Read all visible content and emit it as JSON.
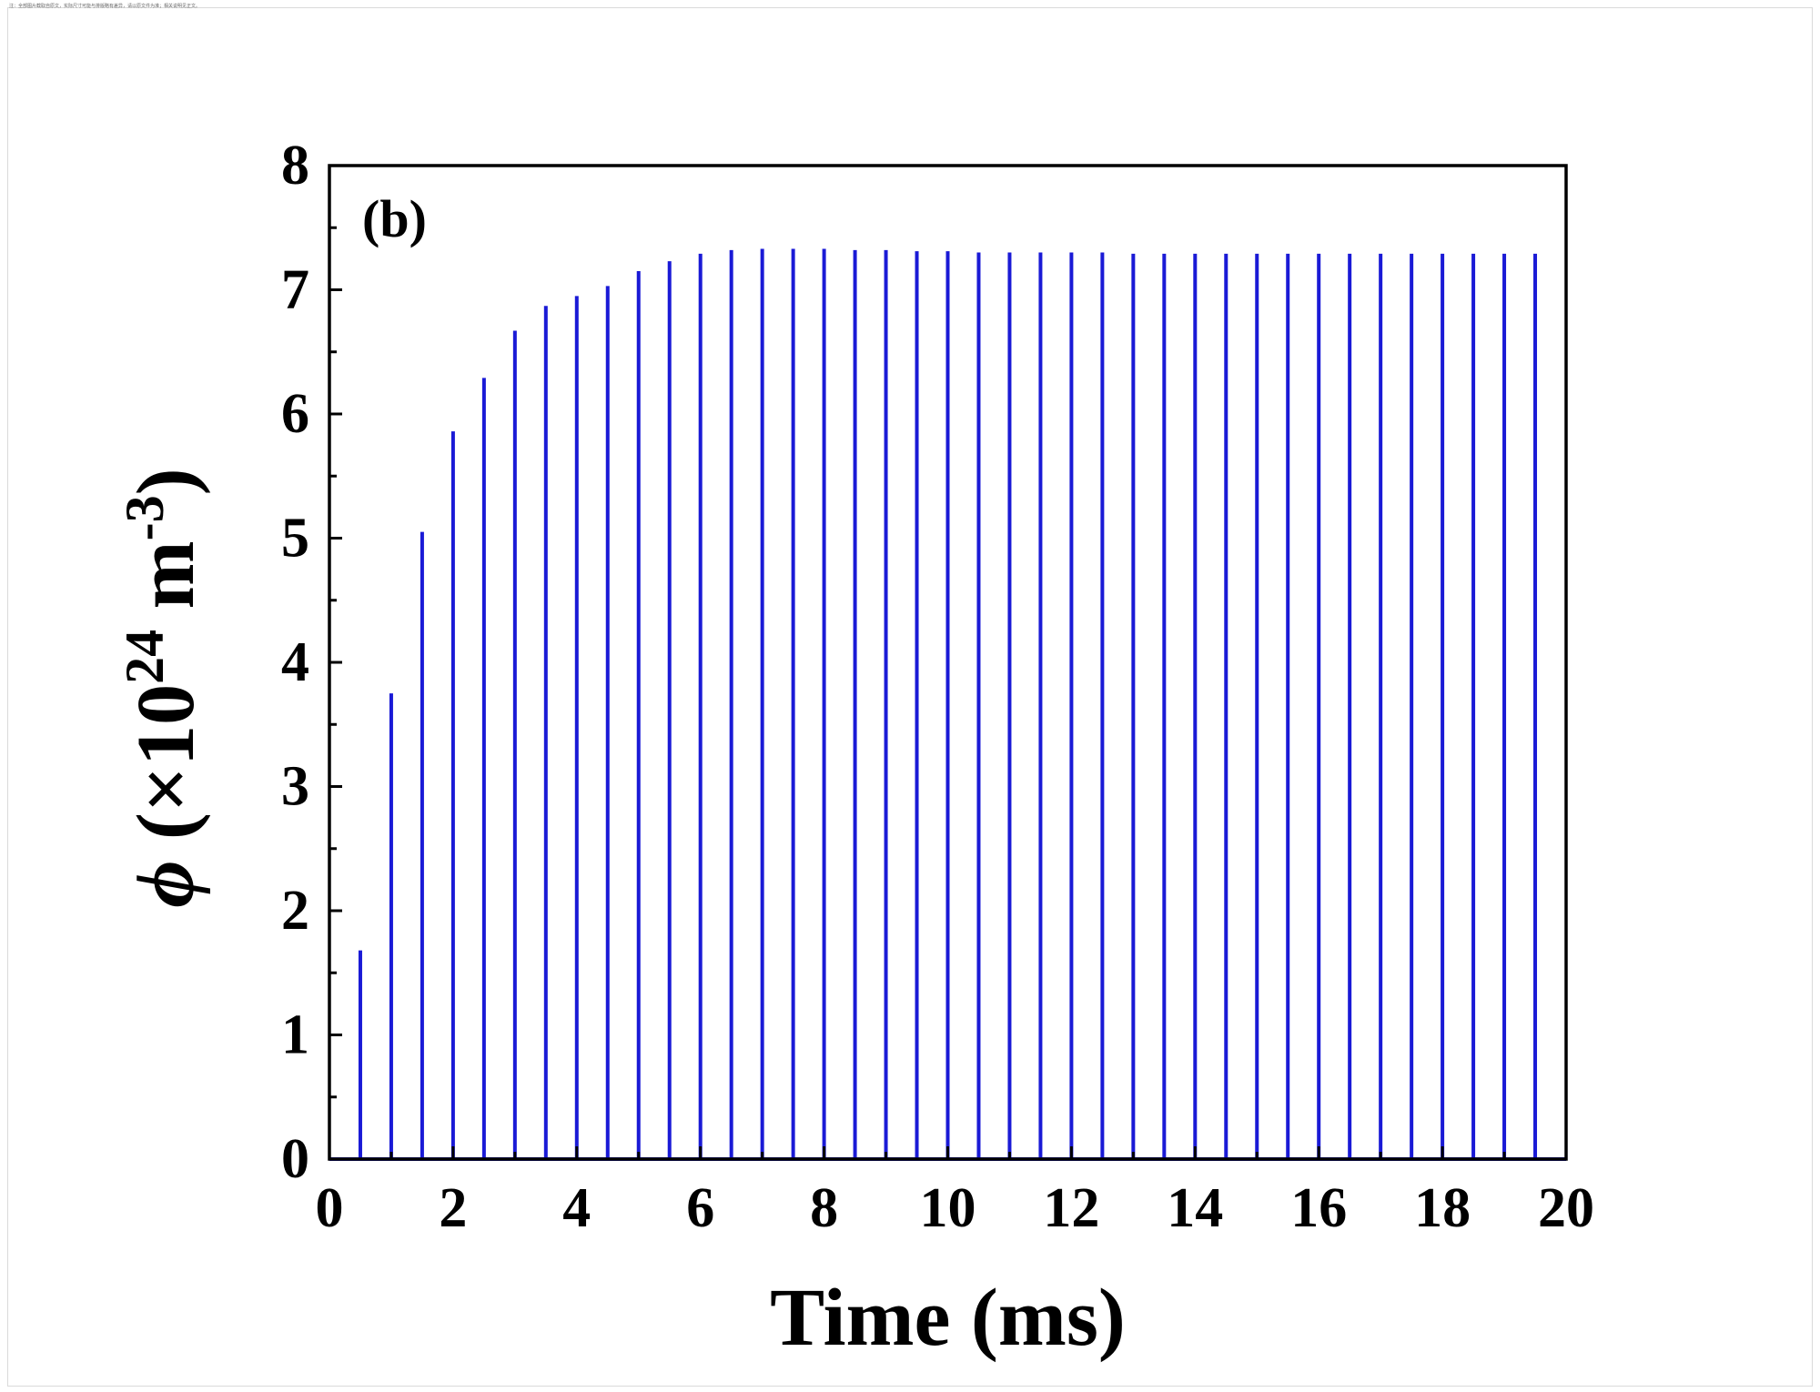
{
  "header_note": "注：全部图片截取自原文，实际尺寸可能与排版略有差异，请以原文件为准；相关说明见正文。",
  "chart_data": {
    "type": "bar",
    "panel_label": "(b)",
    "xlabel": "Time (ms)",
    "ylabel": {
      "symbol": "ϕ",
      "open": " (×10",
      "exp1": "24",
      "unit": " m",
      "exp2": "-3",
      "close": ")"
    },
    "xlim": [
      0,
      20
    ],
    "ylim": [
      0,
      8
    ],
    "x_ticks": [
      "0",
      "2",
      "4",
      "6",
      "8",
      "10",
      "12",
      "14",
      "16",
      "18",
      "20"
    ],
    "y_ticks": [
      "0",
      "1",
      "2",
      "3",
      "4",
      "5",
      "6",
      "7",
      "8"
    ],
    "baseline": 0,
    "grid": false,
    "colors": {
      "series": "#1a1ad6",
      "axes": "#000000"
    },
    "series": [
      {
        "x": [
          0.5,
          1.0,
          1.5,
          2.0,
          2.5,
          3.0,
          3.5,
          4.0,
          4.5,
          5.0,
          5.5,
          6.0,
          6.5,
          7.0,
          7.5,
          8.0,
          8.5,
          9.0,
          9.5,
          10.0,
          10.5,
          11.0,
          11.5,
          12.0,
          12.5,
          13.0,
          13.5,
          14.0,
          14.5,
          15.0,
          15.5,
          16.0,
          16.5,
          17.0,
          17.5,
          18.0,
          18.5,
          19.0,
          19.5
        ],
        "values": [
          1.68,
          3.75,
          5.05,
          5.86,
          6.29,
          6.67,
          6.87,
          6.95,
          7.03,
          7.15,
          7.23,
          7.29,
          7.32,
          7.33,
          7.33,
          7.33,
          7.32,
          7.32,
          7.31,
          7.31,
          7.3,
          7.3,
          7.3,
          7.3,
          7.3,
          7.29,
          7.29,
          7.29,
          7.29,
          7.29,
          7.29,
          7.29,
          7.29,
          7.29,
          7.29,
          7.29,
          7.29,
          7.29,
          7.29
        ]
      }
    ]
  }
}
